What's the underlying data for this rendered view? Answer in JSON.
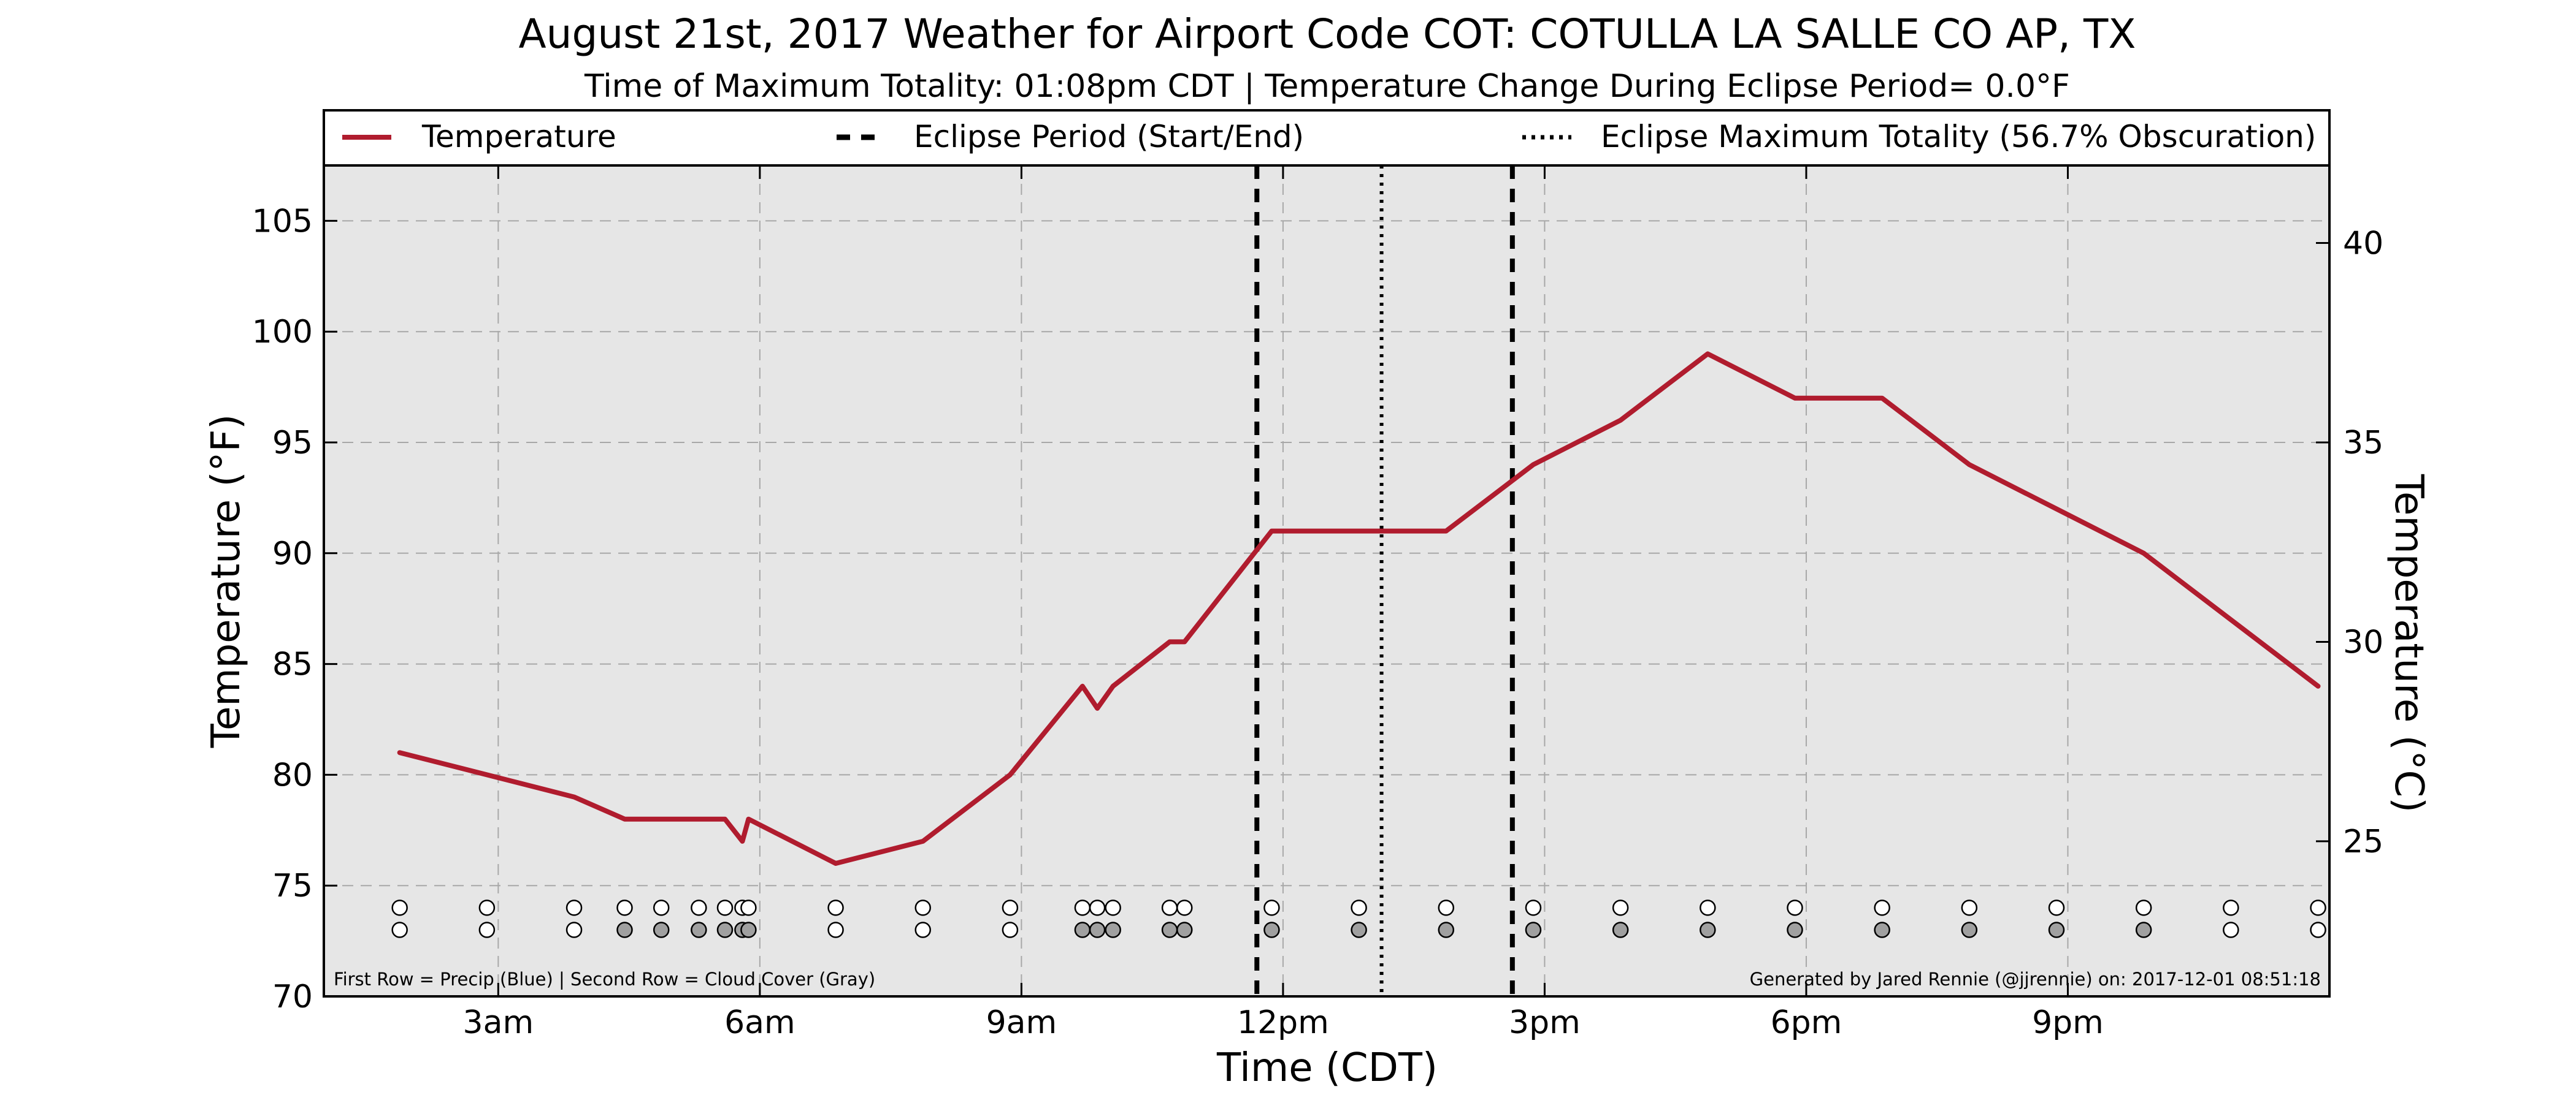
{
  "chart_data": {
    "type": "line",
    "title": "August 21st, 2017 Weather for Airport Code COT: COTULLA LA SALLE CO AP, TX",
    "subtitle": "Time of Maximum Totality: 01:08pm CDT | Temperature Change During Eclipse Period= 0.0°F",
    "xlabel": "Time (CDT)",
    "ylabel": "Temperature (°F)",
    "ylabel_right": "Temperature (°C)",
    "xlim": [
      1.0,
      24.0
    ],
    "ylim": [
      70,
      107.5
    ],
    "x_ticks": [
      {
        "x": 3,
        "label": "3am"
      },
      {
        "x": 6,
        "label": "6am"
      },
      {
        "x": 9,
        "label": "9am"
      },
      {
        "x": 12,
        "label": "12pm"
      },
      {
        "x": 15,
        "label": "3pm"
      },
      {
        "x": 18,
        "label": "6pm"
      },
      {
        "x": 21,
        "label": "9pm"
      }
    ],
    "y_ticks": [
      70,
      75,
      80,
      85,
      90,
      95,
      100,
      105
    ],
    "y_ticks_right": [
      25,
      30,
      35,
      40
    ],
    "grid": true,
    "legend_position": "top",
    "legend": {
      "temperature": "Temperature",
      "eclipse_period": "Eclipse Period (Start/End)",
      "max_totality": "Eclipse Maximum Totality (56.7% Obscuration)"
    },
    "series": [
      {
        "name": "Temperature",
        "color": "#b01c2e",
        "x": [
          1.87,
          2.87,
          3.87,
          4.45,
          4.87,
          5.3,
          5.6,
          5.8,
          5.87,
          6.87,
          7.87,
          8.87,
          9.7,
          9.87,
          10.05,
          10.7,
          10.87,
          11.87,
          12.87,
          13.87,
          14.87,
          15.87,
          16.87,
          17.87,
          18.87,
          19.87,
          20.87,
          21.87,
          22.87,
          23.87
        ],
        "y": [
          81,
          80,
          79,
          78,
          78,
          78,
          78,
          77,
          78,
          76,
          77,
          80,
          84,
          83,
          84,
          86,
          86,
          91,
          91,
          91,
          94,
          96,
          99,
          97,
          97,
          94,
          92,
          90,
          87,
          84
        ]
      }
    ],
    "eclipse_start": 11.7,
    "eclipse_end": 14.63,
    "max_totality": 13.13,
    "precip_row": {
      "y": 74,
      "x": [
        1.87,
        2.87,
        3.87,
        4.45,
        4.87,
        5.3,
        5.6,
        5.8,
        5.87,
        6.87,
        7.87,
        8.87,
        9.7,
        9.87,
        10.05,
        10.7,
        10.87,
        11.87,
        12.87,
        13.87,
        14.87,
        15.87,
        16.87,
        17.87,
        18.87,
        19.87,
        20.87,
        21.87,
        22.87,
        23.87
      ]
    },
    "cloud_row": {
      "y": 73,
      "points": [
        {
          "x": 1.87,
          "overcast": false
        },
        {
          "x": 2.87,
          "overcast": false
        },
        {
          "x": 3.87,
          "overcast": false
        },
        {
          "x": 4.45,
          "overcast": true
        },
        {
          "x": 4.87,
          "overcast": true
        },
        {
          "x": 5.3,
          "overcast": true
        },
        {
          "x": 5.6,
          "overcast": true
        },
        {
          "x": 5.8,
          "overcast": true
        },
        {
          "x": 5.87,
          "overcast": true
        },
        {
          "x": 6.87,
          "overcast": false
        },
        {
          "x": 7.87,
          "overcast": false
        },
        {
          "x": 8.87,
          "overcast": false
        },
        {
          "x": 9.7,
          "overcast": true
        },
        {
          "x": 9.87,
          "overcast": true
        },
        {
          "x": 10.05,
          "overcast": true
        },
        {
          "x": 10.7,
          "overcast": true
        },
        {
          "x": 10.87,
          "overcast": true
        },
        {
          "x": 11.87,
          "overcast": true
        },
        {
          "x": 12.87,
          "overcast": true
        },
        {
          "x": 13.87,
          "overcast": true
        },
        {
          "x": 14.87,
          "overcast": true
        },
        {
          "x": 15.87,
          "overcast": true
        },
        {
          "x": 16.87,
          "overcast": true
        },
        {
          "x": 17.87,
          "overcast": true
        },
        {
          "x": 18.87,
          "overcast": true
        },
        {
          "x": 19.87,
          "overcast": true
        },
        {
          "x": 20.87,
          "overcast": true
        },
        {
          "x": 21.87,
          "overcast": true
        },
        {
          "x": 22.87,
          "overcast": false
        },
        {
          "x": 23.87,
          "overcast": false
        }
      ]
    },
    "footnote_left": "First Row = Precip (Blue) | Second Row = Cloud Cover (Gray)",
    "footnote_right": "Generated by Jared Rennie (@jjrennie) on: 2017-12-01 08:51:18",
    "colors": {
      "plot_background": "#e6e6e6",
      "temperature_line": "#b01c2e",
      "grid": "#a8a8a8",
      "cloud_fill": "#a0a0a0",
      "empty_marker": "#ffffff"
    }
  }
}
